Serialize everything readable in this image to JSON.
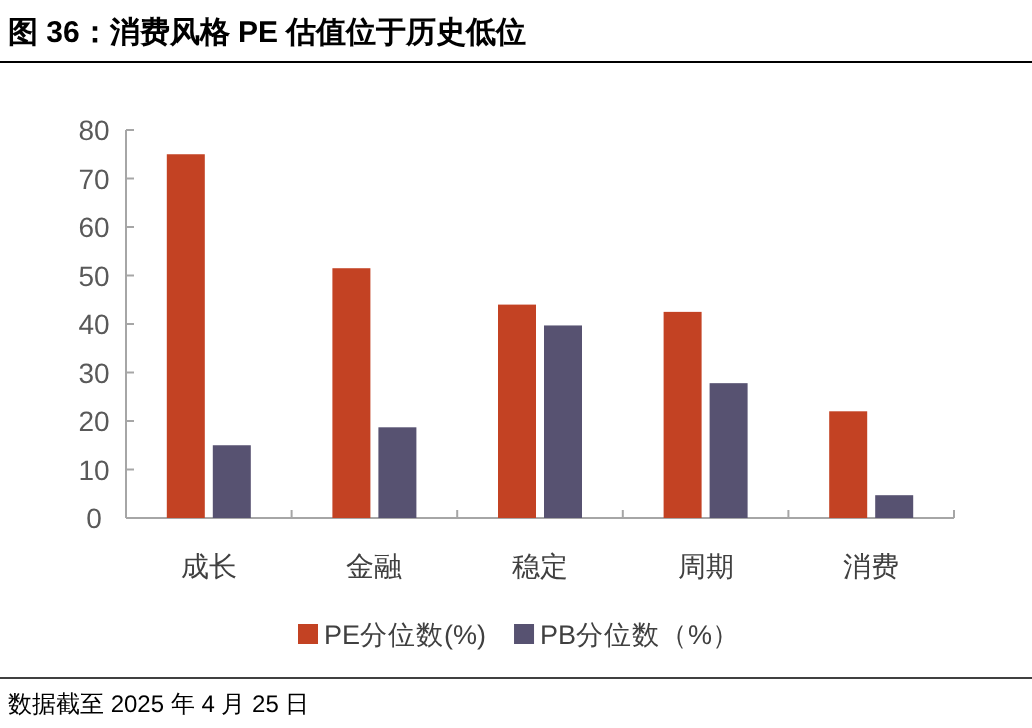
{
  "chart_data": {
    "type": "bar",
    "title": "图 36：消费风格 PE 估值位于历史低位",
    "categories": [
      "成长",
      "金融",
      "稳定",
      "周期",
      "消费"
    ],
    "series": [
      {
        "name": "PE分位数(%)",
        "color": "#c34223",
        "values": [
          75,
          51.5,
          44,
          42.5,
          22
        ]
      },
      {
        "name": "PB分位数（%）",
        "color": "#575271",
        "values": [
          15,
          18.7,
          39.7,
          27.8,
          4.7
        ]
      }
    ],
    "ylim": [
      0,
      80
    ],
    "yticks": [
      0,
      10,
      20,
      30,
      40,
      50,
      60,
      70,
      80
    ],
    "grid": false,
    "legend": "bottom",
    "annotations": [
      "数据截至 2025 年 4 月 25 日"
    ]
  }
}
